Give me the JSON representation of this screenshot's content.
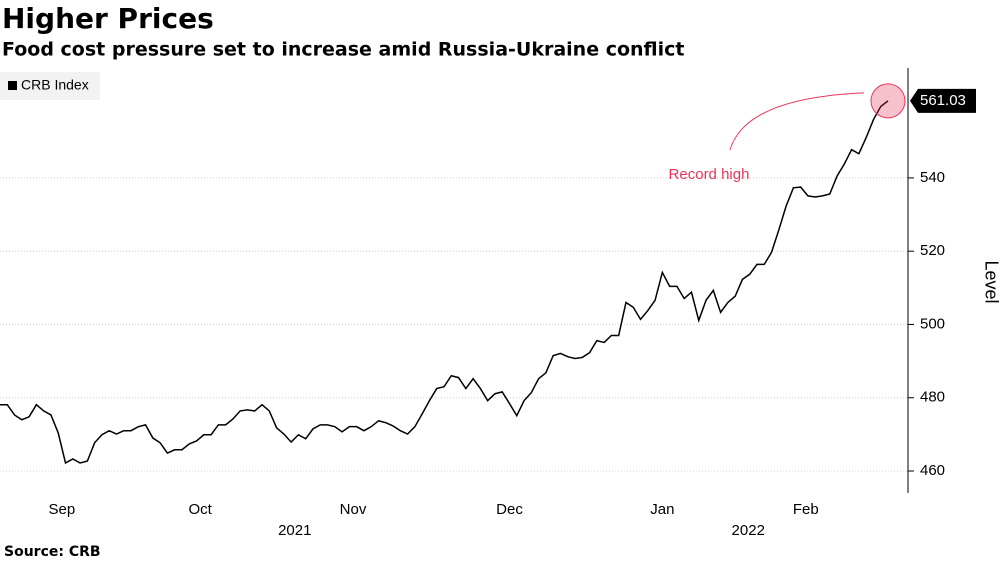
{
  "chart_data": {
    "type": "line",
    "title": "Higher Prices",
    "subtitle": "Food cost pressure set to increase amid Russia-Ukraine conflict",
    "source": "Source: CRB",
    "y_axis_label": "Level",
    "annotation": "Record high",
    "series": [
      {
        "name": "CRB Index",
        "color": "#000000",
        "values": [
          478.1,
          478.1,
          475.3,
          474.0,
          474.8,
          478.1,
          476.4,
          475.3,
          470.4,
          462.2,
          463.3,
          462.2,
          462.7,
          467.7,
          469.9,
          471.0,
          470.1,
          471.0,
          471.0,
          472.1,
          472.6,
          469.0,
          467.7,
          464.9,
          465.8,
          465.8,
          467.4,
          468.2,
          469.9,
          469.9,
          472.6,
          472.6,
          474.2,
          476.4,
          476.7,
          476.4,
          478.1,
          476.4,
          471.8,
          470.1,
          467.9,
          469.9,
          468.8,
          471.5,
          472.6,
          472.6,
          472.1,
          470.7,
          472.1,
          472.1,
          471.0,
          472.1,
          473.7,
          473.2,
          472.3,
          471.0,
          470.1,
          472.1,
          475.6,
          479.2,
          482.5,
          483.0,
          486.0,
          485.5,
          482.5,
          485.2,
          482.5,
          479.2,
          481.1,
          481.6,
          478.4,
          475.1,
          479.2,
          481.4,
          485.2,
          486.8,
          491.5,
          492.1,
          491.2,
          490.7,
          491.0,
          492.3,
          495.6,
          495.1,
          497.0,
          497.0,
          506.0,
          504.7,
          501.4,
          503.8,
          506.6,
          514.2,
          510.4,
          510.4,
          507.1,
          508.8,
          501.1,
          506.6,
          509.3,
          503.3,
          506.0,
          507.7,
          512.3,
          513.7,
          516.4,
          516.4,
          519.7,
          525.8,
          532.3,
          537.3,
          537.5,
          535.1,
          534.8,
          535.1,
          535.6,
          540.5,
          543.8,
          547.7,
          546.6,
          551.0,
          555.9,
          559.5,
          561.03
        ]
      }
    ],
    "xlim": [
      0,
      122
    ],
    "xticks": [
      {
        "value": 8.5,
        "label": "Sep"
      },
      {
        "value": 27.5,
        "label": "Oct"
      },
      {
        "value": 48.5,
        "label": "Nov"
      },
      {
        "value": 70,
        "label": "Dec"
      },
      {
        "value": 91,
        "label": "Jan"
      },
      {
        "value": 110.7,
        "label": "Feb"
      }
    ],
    "year_labels": [
      {
        "value": 40.5,
        "label": "2021"
      },
      {
        "value": 102.8,
        "label": "2022"
      }
    ],
    "ylim": [
      454,
      570
    ],
    "yticks": [
      460,
      480,
      500,
      520,
      540
    ],
    "grid": true,
    "highlight_color": "#e8365b"
  }
}
